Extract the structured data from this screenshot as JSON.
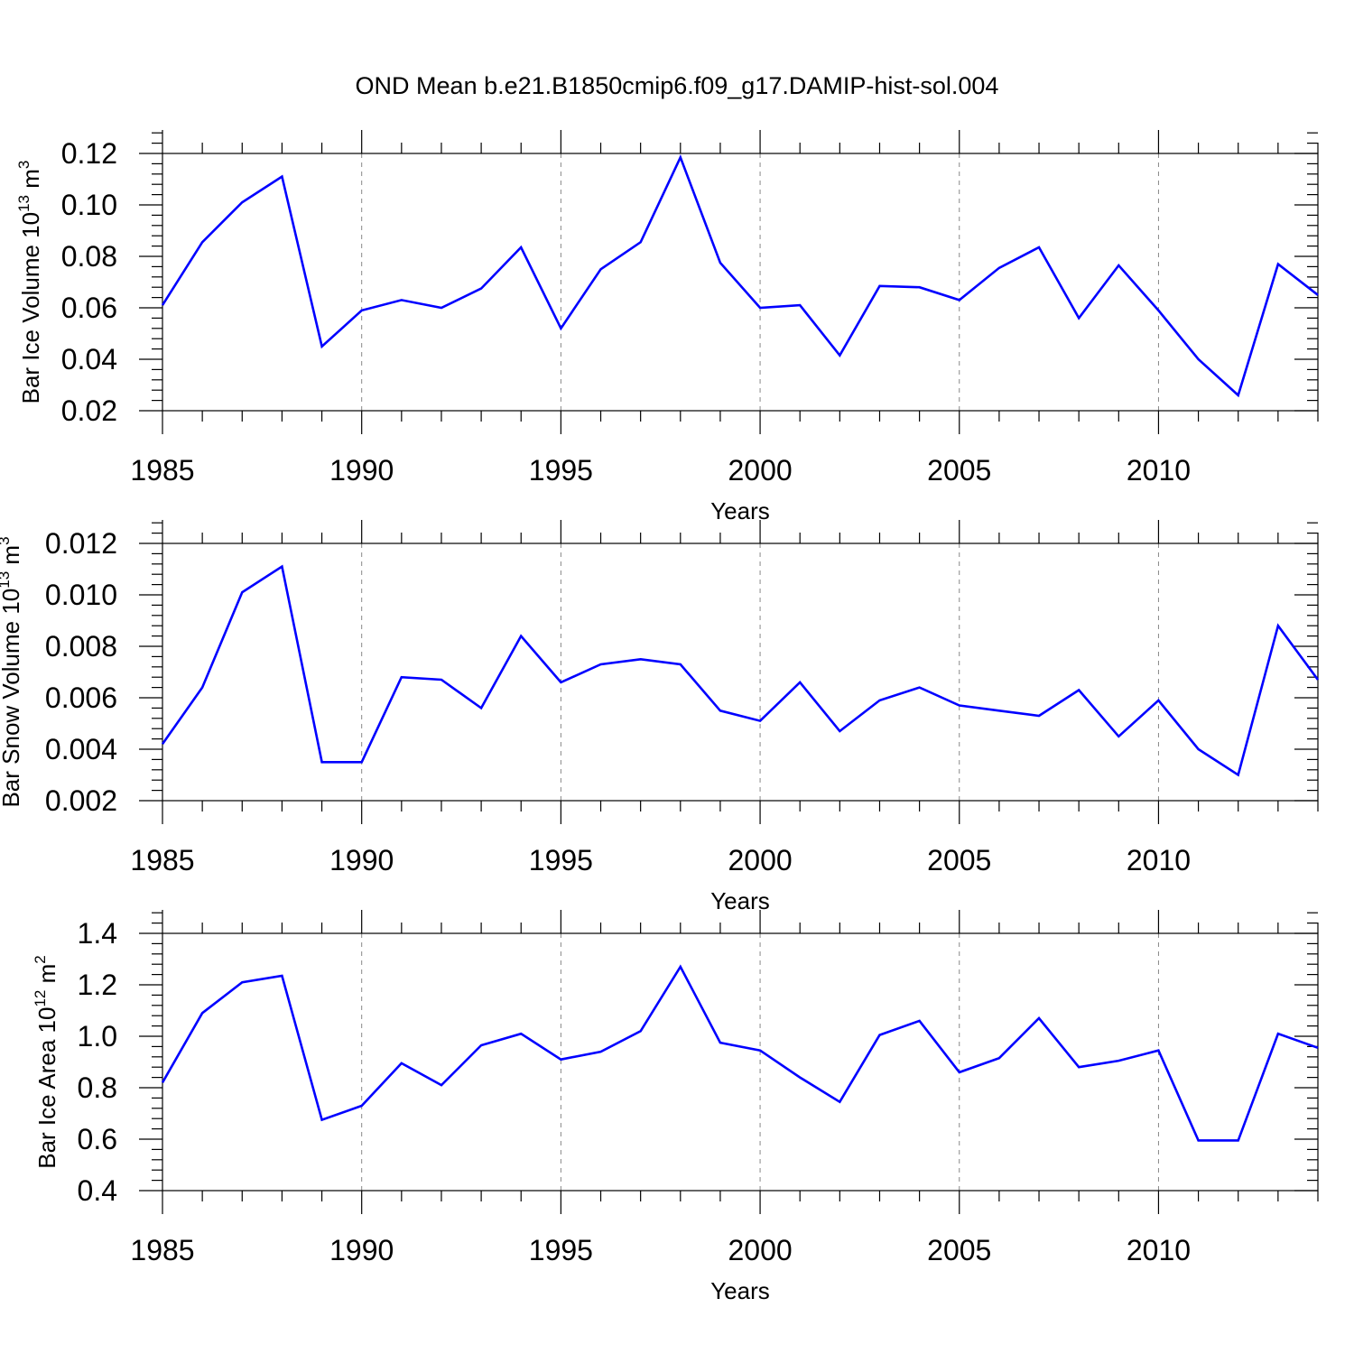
{
  "title": "OND Mean b.e21.B1850cmip6.f09_g17.DAMIP-hist-sol.004",
  "colors": {
    "line": "#0000ff",
    "axis": "#000000",
    "grid": "#888888"
  },
  "chart_data": [
    {
      "type": "line",
      "xlabel": "Years",
      "ylabel": {
        "text": "Bar Ice Volume 10",
        "sup": "13",
        "unit": " m",
        "unit_sup": "3"
      },
      "xlim": [
        1985,
        2014
      ],
      "ylim": [
        0.02,
        0.12
      ],
      "yticks": [
        "0.02",
        "0.04",
        "0.06",
        "0.08",
        "0.10",
        "0.12"
      ],
      "xticks": [
        "1985",
        "1990",
        "1995",
        "2000",
        "2005",
        "2010"
      ],
      "grid": "vertical dashed at major x ticks",
      "series": [
        {
          "x": [
            1985,
            1986,
            1987,
            1988,
            1989,
            1990,
            1991,
            1992,
            1993,
            1994,
            1995,
            1996,
            1997,
            1998,
            1999,
            2000,
            2001,
            2002,
            2003,
            2004,
            2005,
            2006,
            2007,
            2008,
            2009,
            2010,
            2011,
            2012,
            2013,
            2014
          ],
          "values": [
            0.061,
            0.0855,
            0.101,
            0.111,
            0.045,
            0.059,
            0.063,
            0.06,
            0.0675,
            0.0835,
            0.052,
            0.075,
            0.0855,
            0.1185,
            0.0775,
            0.06,
            0.061,
            0.0415,
            0.0685,
            0.068,
            0.063,
            0.0755,
            0.0835,
            0.056,
            0.0765,
            0.059,
            0.04,
            0.026,
            0.077,
            0.065
          ]
        }
      ]
    },
    {
      "type": "line",
      "xlabel": "Years",
      "ylabel": {
        "text": "Bar Snow Volume 10",
        "sup": "13",
        "unit": " m",
        "unit_sup": "3"
      },
      "xlim": [
        1985,
        2014
      ],
      "ylim": [
        0.002,
        0.012
      ],
      "yticks": [
        "0.002",
        "0.004",
        "0.006",
        "0.008",
        "0.010",
        "0.012"
      ],
      "xticks": [
        "1985",
        "1990",
        "1995",
        "2000",
        "2005",
        "2010"
      ],
      "grid": "vertical dashed at major x ticks",
      "series": [
        {
          "x": [
            1985,
            1986,
            1987,
            1988,
            1989,
            1990,
            1991,
            1992,
            1993,
            1994,
            1995,
            1996,
            1997,
            1998,
            1999,
            2000,
            2001,
            2002,
            2003,
            2004,
            2005,
            2006,
            2007,
            2008,
            2009,
            2010,
            2011,
            2012,
            2013,
            2014
          ],
          "values": [
            0.0042,
            0.0064,
            0.0101,
            0.0111,
            0.0035,
            0.0035,
            0.0068,
            0.0067,
            0.0056,
            0.0084,
            0.0066,
            0.0073,
            0.0075,
            0.0073,
            0.0055,
            0.0051,
            0.0066,
            0.0047,
            0.0059,
            0.0064,
            0.0057,
            0.0055,
            0.0053,
            0.0063,
            0.0045,
            0.0059,
            0.004,
            0.003,
            0.0088,
            0.0067
          ]
        }
      ]
    },
    {
      "type": "line",
      "xlabel": "Years",
      "ylabel": {
        "text": "Bar Ice Area 10",
        "sup": "12",
        "unit": " m",
        "unit_sup": "2"
      },
      "xlim": [
        1985,
        2014
      ],
      "ylim": [
        0.4,
        1.4
      ],
      "yticks": [
        "0.4",
        "0.6",
        "0.8",
        "1.0",
        "1.2",
        "1.4"
      ],
      "xticks": [
        "1985",
        "1990",
        "1995",
        "2000",
        "2005",
        "2010"
      ],
      "grid": "vertical dashed at major x ticks",
      "series": [
        {
          "x": [
            1985,
            1986,
            1987,
            1988,
            1989,
            1990,
            1991,
            1992,
            1993,
            1994,
            1995,
            1996,
            1997,
            1998,
            1999,
            2000,
            2001,
            2002,
            2003,
            2004,
            2005,
            2006,
            2007,
            2008,
            2009,
            2010,
            2011,
            2012,
            2013,
            2014
          ],
          "values": [
            0.82,
            1.09,
            1.21,
            1.235,
            0.675,
            0.73,
            0.895,
            0.81,
            0.965,
            1.01,
            0.91,
            0.94,
            1.02,
            1.27,
            0.975,
            0.945,
            0.84,
            0.745,
            1.005,
            1.06,
            0.86,
            0.915,
            1.07,
            0.88,
            0.905,
            0.945,
            0.595,
            0.595,
            1.01,
            0.955
          ]
        }
      ]
    }
  ]
}
